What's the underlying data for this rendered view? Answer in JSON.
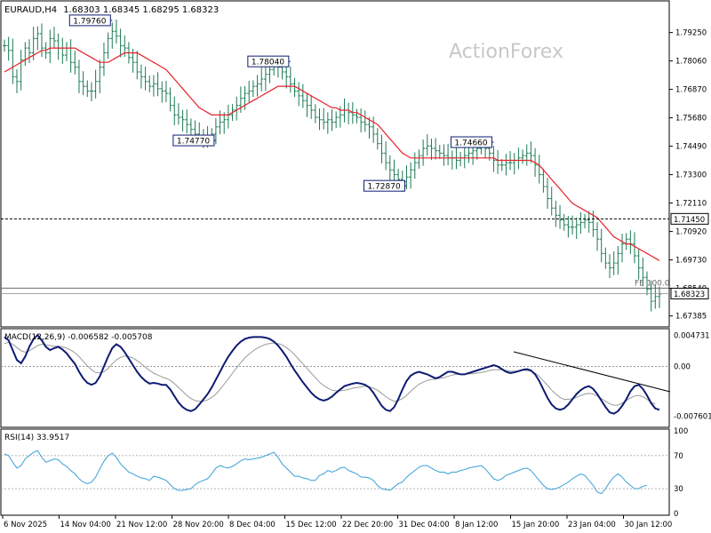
{
  "header": {
    "symbol": "EURAUD,H4",
    "ohlc": "1.68303 1.68345 1.68295 1.68323"
  },
  "watermark": "ActionForex",
  "colors": {
    "candle": "#1b7a52",
    "ma": "#e8202a",
    "macd": "#0d1b72",
    "signal": "#9a9a9a",
    "rsi": "#3aa0d8",
    "label_border": "#0d1b72",
    "grid": "#000000"
  },
  "price_axis": {
    "min": 1.67,
    "max": 1.805,
    "ticks": [
      "1.79250",
      "1.78060",
      "1.76870",
      "1.75680",
      "1.74490",
      "1.73300",
      "1.72110",
      "1.70920",
      "1.69730",
      "1.68540",
      "1.67385"
    ],
    "current_price": "1.68323",
    "level_line": "1.71450",
    "fe_label": "FE 100.0"
  },
  "time_axis": {
    "labels": [
      "6 Nov 2025",
      "14 Nov 04:00",
      "21 Nov 12:00",
      "28 Nov 20:00",
      "8 Dec 04:00",
      "15 Dec 12:00",
      "22 Dec 20:00",
      "31 Dec 04:00",
      "8 Jan 12:00",
      "15 Jan 20:00",
      "23 Jan 04:00",
      "30 Jan 12:00"
    ]
  },
  "annotations": [
    {
      "text": "1.79760",
      "bar": 26,
      "price": 1.7976
    },
    {
      "text": "1.78040",
      "bar": 69,
      "price": 1.7804
    },
    {
      "text": "1.74770",
      "bar": 51,
      "price": 1.7477
    },
    {
      "text": "1.72870",
      "bar": 97,
      "price": 1.7287
    },
    {
      "text": "1.74660",
      "bar": 118,
      "price": 1.7466
    }
  ],
  "macd_panel": {
    "label": "MACD(12,26,9) -0.006582 -0.005708",
    "ticks": [
      "0.004731",
      "0.00",
      "-0.007601"
    ],
    "min": -0.009,
    "max": 0.0055
  },
  "rsi_panel": {
    "label": "RSI(14) 33.9517",
    "ticks": [
      "100",
      "70",
      "30",
      "0"
    ]
  },
  "chart_data": {
    "type": "line",
    "title": "EURAUD,H4",
    "series": [
      {
        "name": "",
        "values": [
          1.787,
          1.785,
          1.774,
          1.772,
          1.781,
          1.786,
          1.784,
          1.79,
          1.792,
          1.786,
          1.784,
          1.79,
          1.789,
          1.786,
          1.783,
          1.786,
          1.78,
          1.778,
          1.772,
          1.77,
          1.768,
          1.768,
          1.772,
          1.778,
          1.784,
          1.79,
          1.793,
          1.791,
          1.787,
          1.786,
          1.782,
          1.78,
          1.776,
          1.774,
          1.772,
          1.77,
          1.771,
          1.769,
          1.768,
          1.767,
          1.762,
          1.758,
          1.757,
          1.756,
          1.754,
          1.752,
          1.75,
          1.749,
          1.749,
          1.748,
          1.75,
          1.753,
          1.755,
          1.756,
          1.758,
          1.76,
          1.762,
          1.765,
          1.767,
          1.768,
          1.77,
          1.771,
          1.773,
          1.775,
          1.777,
          1.779,
          1.778,
          1.776,
          1.774,
          1.771,
          1.768,
          1.766,
          1.764,
          1.762,
          1.76,
          1.757,
          1.756,
          1.755,
          1.756,
          1.755,
          1.757,
          1.758,
          1.76,
          1.759,
          1.758,
          1.757,
          1.755,
          1.754,
          1.753,
          1.75,
          1.746,
          1.742,
          1.738,
          1.735,
          1.733,
          1.731,
          1.73,
          1.732,
          1.735,
          1.738,
          1.741,
          1.744,
          1.745,
          1.744,
          1.743,
          1.742,
          1.741,
          1.74,
          1.74,
          1.739,
          1.74,
          1.741,
          1.742,
          1.743,
          1.744,
          1.745,
          1.744,
          1.742,
          1.739,
          1.737,
          1.737,
          1.738,
          1.738,
          1.739,
          1.74,
          1.741,
          1.742,
          1.741,
          1.737,
          1.733,
          1.728,
          1.723,
          1.719,
          1.716,
          1.714,
          1.712,
          1.711,
          1.711,
          1.712,
          1.713,
          1.714,
          1.713,
          1.71,
          1.706,
          1.7,
          1.696,
          1.694,
          1.696,
          1.7,
          1.704,
          1.706,
          1.704,
          1.699,
          1.694,
          1.69,
          1.685,
          1.68,
          1.682,
          1.683
        ]
      },
      {
        "name": "",
        "values": [
          1.776,
          1.777,
          1.778,
          1.779,
          1.78,
          1.781,
          1.782,
          1.783,
          1.784,
          1.785,
          1.785,
          1.786,
          1.786,
          1.786,
          1.786,
          1.786,
          1.786,
          1.786,
          1.785,
          1.784,
          1.783,
          1.782,
          1.781,
          1.78,
          1.78,
          1.78,
          1.781,
          1.782,
          1.783,
          1.784,
          1.784,
          1.784,
          1.784,
          1.783,
          1.782,
          1.781,
          1.78,
          1.779,
          1.778,
          1.777,
          1.775,
          1.773,
          1.771,
          1.769,
          1.767,
          1.765,
          1.763,
          1.761,
          1.76,
          1.759,
          1.758,
          1.758,
          1.758,
          1.758,
          1.758,
          1.759,
          1.76,
          1.761,
          1.762,
          1.763,
          1.764,
          1.765,
          1.766,
          1.767,
          1.768,
          1.769,
          1.77,
          1.77,
          1.77,
          1.77,
          1.77,
          1.769,
          1.768,
          1.767,
          1.766,
          1.765,
          1.764,
          1.763,
          1.762,
          1.761,
          1.761,
          1.76,
          1.76,
          1.76,
          1.759,
          1.759,
          1.758,
          1.757,
          1.756,
          1.755,
          1.754,
          1.752,
          1.75,
          1.748,
          1.746,
          1.744,
          1.742,
          1.741,
          1.74,
          1.74,
          1.74,
          1.74,
          1.74,
          1.74,
          1.74,
          1.74,
          1.74,
          1.74,
          1.74,
          1.74,
          1.74,
          1.74,
          1.74,
          1.74,
          1.74,
          1.74,
          1.74,
          1.74,
          1.74,
          1.739,
          1.739,
          1.739,
          1.739,
          1.739,
          1.739,
          1.739,
          1.739,
          1.739,
          1.738,
          1.737,
          1.735,
          1.733,
          1.731,
          1.729,
          1.727,
          1.725,
          1.723,
          1.721,
          1.72,
          1.719,
          1.718,
          1.717,
          1.716,
          1.715,
          1.713,
          1.711,
          1.709,
          1.707,
          1.706,
          1.705,
          1.704,
          1.704,
          1.703,
          1.702,
          1.701,
          1.7,
          1.699,
          1.698,
          1.697
        ]
      },
      {
        "name": "",
        "values": [
          0.0045,
          0.004,
          0.0025,
          0.001,
          0.0005,
          0.0015,
          0.003,
          0.0042,
          0.0048,
          0.004,
          0.003,
          0.0025,
          0.0028,
          0.003,
          0.0026,
          0.002,
          0.0012,
          0.0004,
          -0.0008,
          -0.0018,
          -0.0025,
          -0.0028,
          -0.0025,
          -0.0015,
          0.0,
          0.0015,
          0.0028,
          0.0034,
          0.003,
          0.0022,
          0.0012,
          0.0002,
          -0.0008,
          -0.0016,
          -0.0022,
          -0.0026,
          -0.0025,
          -0.0026,
          -0.0028,
          -0.0028,
          -0.0035,
          -0.0045,
          -0.0055,
          -0.0062,
          -0.0066,
          -0.0068,
          -0.0065,
          -0.0058,
          -0.005,
          -0.0042,
          -0.0032,
          -0.002,
          -0.0008,
          0.0004,
          0.0015,
          0.0024,
          0.0032,
          0.0038,
          0.0042,
          0.0044,
          0.0045,
          0.0045,
          0.0045,
          0.0044,
          0.0042,
          0.0038,
          0.0032,
          0.0024,
          0.0015,
          0.0004,
          -0.0006,
          -0.0015,
          -0.0024,
          -0.0032,
          -0.004,
          -0.0046,
          -0.005,
          -0.0052,
          -0.005,
          -0.0046,
          -0.004,
          -0.0035,
          -0.003,
          -0.0028,
          -0.0026,
          -0.0025,
          -0.0026,
          -0.0028,
          -0.0032,
          -0.004,
          -0.005,
          -0.006,
          -0.0066,
          -0.0068,
          -0.0062,
          -0.005,
          -0.0035,
          -0.0022,
          -0.0014,
          -0.001,
          -0.0008,
          -0.001,
          -0.0012,
          -0.0015,
          -0.0018,
          -0.0016,
          -0.0012,
          -0.0008,
          -0.0008,
          -0.001,
          -0.0012,
          -0.0012,
          -0.001,
          -0.0008,
          -0.0006,
          -0.0004,
          -0.0002,
          0.0,
          0.0002,
          0.0,
          -0.0004,
          -0.0008,
          -0.001,
          -0.0009,
          -0.0007,
          -0.0005,
          -0.0004,
          -0.0006,
          -0.0012,
          -0.0022,
          -0.0035,
          -0.0048,
          -0.0058,
          -0.0064,
          -0.0066,
          -0.0064,
          -0.0058,
          -0.005,
          -0.0042,
          -0.0036,
          -0.0032,
          -0.003,
          -0.0034,
          -0.0042,
          -0.0052,
          -0.0062,
          -0.007,
          -0.0072,
          -0.0068,
          -0.006,
          -0.005,
          -0.0038,
          -0.003,
          -0.0028,
          -0.0034,
          -0.0044,
          -0.0056,
          -0.0064,
          -0.0066
        ]
      },
      {
        "name": "",
        "values": [
          0.0035,
          0.0037,
          0.0034,
          0.0029,
          0.0024,
          0.0022,
          0.0024,
          0.0028,
          0.0032,
          0.0034,
          0.0033,
          0.0032,
          0.0031,
          0.0031,
          0.003,
          0.0028,
          0.0025,
          0.0021,
          0.0015,
          0.0008,
          0.0001,
          -0.0005,
          -0.0009,
          -0.001,
          -0.0008,
          -0.0003,
          0.0004,
          0.001,
          0.0014,
          0.0016,
          0.0015,
          0.0013,
          0.0009,
          0.0004,
          -0.0001,
          -0.0006,
          -0.001,
          -0.0013,
          -0.0016,
          -0.0018,
          -0.0021,
          -0.0026,
          -0.0032,
          -0.0038,
          -0.0044,
          -0.0049,
          -0.0052,
          -0.0053,
          -0.0053,
          -0.0051,
          -0.0047,
          -0.0042,
          -0.0035,
          -0.0027,
          -0.0019,
          -0.001,
          -0.0002,
          0.0006,
          0.0013,
          0.0019,
          0.0024,
          0.0028,
          0.0031,
          0.0034,
          0.0035,
          0.0036,
          0.0035,
          0.0033,
          0.0029,
          0.0024,
          0.0018,
          0.0011,
          0.0004,
          -0.0003,
          -0.001,
          -0.0017,
          -0.0024,
          -0.0029,
          -0.0033,
          -0.0036,
          -0.0037,
          -0.0037,
          -0.0036,
          -0.0035,
          -0.0033,
          -0.0032,
          -0.0031,
          -0.003,
          -0.0031,
          -0.0033,
          -0.0036,
          -0.0041,
          -0.0046,
          -0.005,
          -0.0053,
          -0.0052,
          -0.0049,
          -0.0044,
          -0.0038,
          -0.0032,
          -0.0027,
          -0.0024,
          -0.0021,
          -0.002,
          -0.0019,
          -0.0018,
          -0.0017,
          -0.0015,
          -0.0013,
          -0.0012,
          -0.0012,
          -0.0012,
          -0.0011,
          -0.0011,
          -0.001,
          -0.0009,
          -0.0008,
          -0.0006,
          -0.0005,
          -0.0005,
          -0.0005,
          -0.0006,
          -0.0007,
          -0.0007,
          -0.0007,
          -0.0006,
          -0.0006,
          -0.0007,
          -0.001,
          -0.0015,
          -0.0022,
          -0.0029,
          -0.0036,
          -0.0042,
          -0.0047,
          -0.005,
          -0.005,
          -0.0049,
          -0.0047,
          -0.0044,
          -0.0042,
          -0.0041,
          -0.0042,
          -0.0045,
          -0.0049,
          -0.0053,
          -0.0057,
          -0.0059,
          -0.0059,
          -0.0056,
          -0.0052,
          -0.0048,
          -0.0045,
          -0.0044,
          -0.0046,
          -0.005,
          -0.0055,
          -0.0057
        ]
      },
      {
        "name": "",
        "values": [
          72,
          70,
          62,
          55,
          58,
          66,
          70,
          74,
          76,
          68,
          62,
          64,
          66,
          65,
          60,
          57,
          52,
          48,
          42,
          38,
          36,
          38,
          44,
          54,
          63,
          70,
          73,
          68,
          60,
          55,
          50,
          48,
          45,
          43,
          42,
          40,
          45,
          44,
          42,
          40,
          35,
          30,
          28,
          28,
          29,
          30,
          35,
          38,
          40,
          42,
          48,
          55,
          58,
          56,
          55,
          57,
          60,
          64,
          66,
          65,
          66,
          67,
          68,
          70,
          72,
          74,
          68,
          60,
          55,
          50,
          45,
          45,
          43,
          42,
          40,
          40,
          46,
          48,
          52,
          50,
          52,
          55,
          56,
          52,
          50,
          48,
          44,
          44,
          43,
          40,
          34,
          30,
          29,
          28,
          32,
          36,
          38,
          44,
          48,
          52,
          56,
          58,
          58,
          55,
          52,
          50,
          50,
          48,
          50,
          50,
          52,
          53,
          55,
          56,
          57,
          58,
          54,
          48,
          42,
          40,
          42,
          46,
          48,
          50,
          52,
          54,
          55,
          52,
          46,
          40,
          34,
          30,
          29,
          30,
          32,
          35,
          38,
          42,
          45,
          48,
          46,
          40,
          34,
          26,
          24,
          30,
          38,
          44,
          48,
          44,
          38,
          34,
          30,
          30,
          33,
          34
        ]
      }
    ]
  }
}
